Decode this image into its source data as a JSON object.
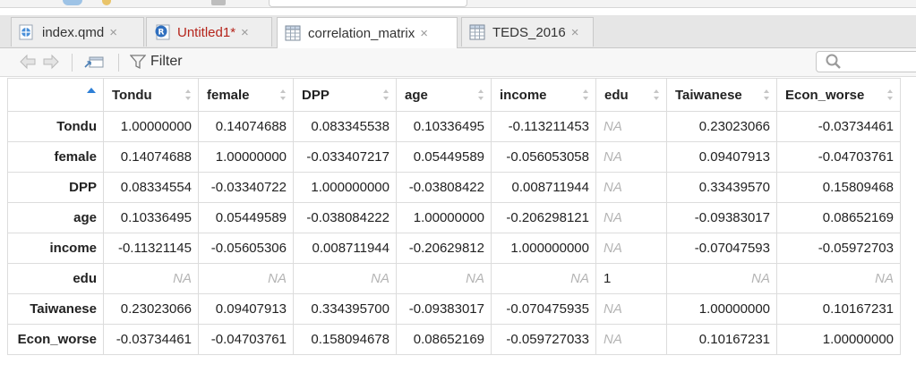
{
  "tabs": [
    {
      "label": "index.qmd",
      "icon": "quarto-doc-icon",
      "unsaved": false,
      "active": false
    },
    {
      "label": "Untitled1*",
      "icon": "r-script-icon",
      "unsaved": true,
      "active": false
    },
    {
      "label": "correlation_matrix",
      "icon": "data-table-icon",
      "unsaved": false,
      "active": true
    },
    {
      "label": "TEDS_2016",
      "icon": "data-table-icon",
      "unsaved": false,
      "active": false
    }
  ],
  "tab_close_glyph": "×",
  "toolbar": {
    "back_icon": "back-arrow-icon",
    "forward_icon": "forward-arrow-icon",
    "popout_icon": "popout-icon",
    "filter_label": "Filter",
    "search_placeholder": ""
  },
  "grid": {
    "columns": [
      "Tondu",
      "female",
      "DPP",
      "age",
      "income",
      "edu",
      "Taiwanese",
      "Econ_worse"
    ],
    "rows": [
      {
        "name": "Tondu",
        "cells": [
          "1.00000000",
          "0.14074688",
          "0.083345538",
          "0.10336495",
          "-0.113211453",
          "NA",
          "0.23023066",
          "-0.03734461"
        ]
      },
      {
        "name": "female",
        "cells": [
          "0.14074688",
          "1.00000000",
          "-0.033407217",
          "0.05449589",
          "-0.056053058",
          "NA",
          "0.09407913",
          "-0.04703761"
        ]
      },
      {
        "name": "DPP",
        "cells": [
          "0.08334554",
          "-0.03340722",
          "1.000000000",
          "-0.03808422",
          "0.008711944",
          "NA",
          "0.33439570",
          "0.15809468"
        ]
      },
      {
        "name": "age",
        "cells": [
          "0.10336495",
          "0.05449589",
          "-0.038084222",
          "1.00000000",
          "-0.206298121",
          "NA",
          "-0.09383017",
          "0.08652169"
        ]
      },
      {
        "name": "income",
        "cells": [
          "-0.11321145",
          "-0.05605306",
          "0.008711944",
          "-0.20629812",
          "1.000000000",
          "NA",
          "-0.07047593",
          "-0.05972703"
        ]
      },
      {
        "name": "edu",
        "cells": [
          "NA",
          "NA",
          "NA",
          "NA",
          "NA",
          "1",
          "NA",
          "NA"
        ]
      },
      {
        "name": "Taiwanese",
        "cells": [
          "0.23023066",
          "0.09407913",
          "0.334395700",
          "-0.09383017",
          "-0.070475935",
          "NA",
          "1.00000000",
          "0.10167231"
        ]
      },
      {
        "name": "Econ_worse",
        "cells": [
          "-0.03734461",
          "-0.04703761",
          "0.158094678",
          "0.08652169",
          "-0.059727033",
          "NA",
          "0.10167231",
          "1.00000000"
        ]
      }
    ]
  },
  "colors": {
    "accent": "#2e7fd6",
    "unsaved": "#b5241b",
    "na_text": "#b4b4b4"
  }
}
